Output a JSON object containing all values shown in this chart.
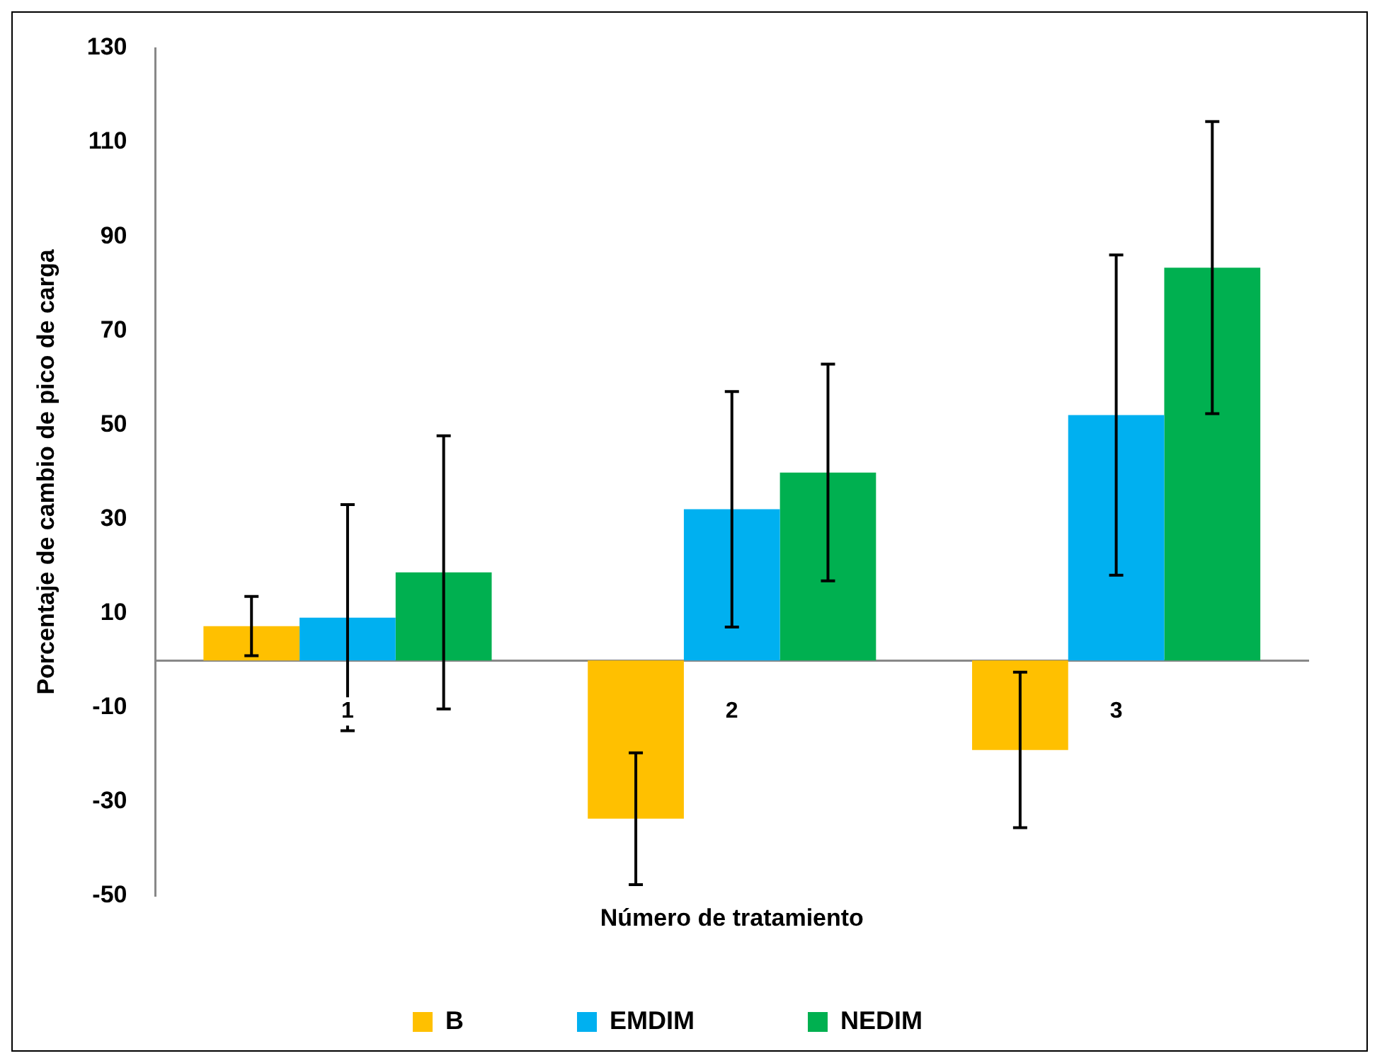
{
  "chart_data": {
    "type": "bar",
    "xlabel": "Número de tratamiento",
    "ylabel": "Porcentaje de cambio de pico de carga",
    "categories": [
      "1",
      "2",
      "3"
    ],
    "series": [
      {
        "name": "B",
        "color": "#ffc000",
        "values": [
          7.3,
          -33.6,
          -19
        ],
        "errors": [
          6.3,
          14,
          16.5
        ]
      },
      {
        "name": "EMDIM",
        "color": "#00b0f0",
        "values": [
          9.1,
          32.1,
          52.1
        ],
        "errors": [
          24,
          25,
          34
        ]
      },
      {
        "name": "NEDIM",
        "color": "#00b050",
        "values": [
          18.7,
          39.9,
          83.4
        ],
        "errors": [
          29,
          23,
          31
        ]
      }
    ],
    "ylim": [
      -50,
      130
    ],
    "yticks": [
      -50,
      -30,
      -10,
      10,
      30,
      50,
      70,
      90,
      110,
      130
    ],
    "grid": false,
    "legend": "bottom"
  }
}
